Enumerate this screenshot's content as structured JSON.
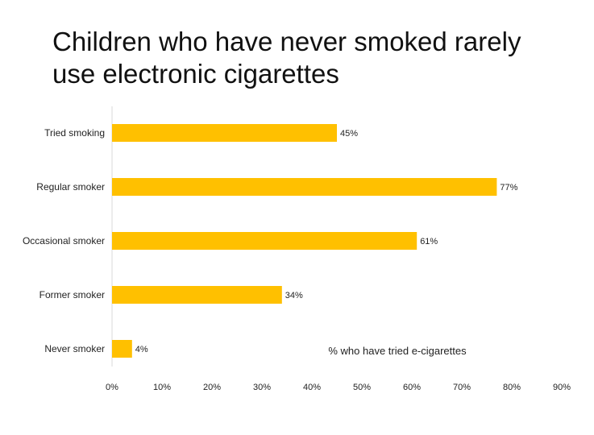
{
  "chart_data": {
    "type": "bar",
    "orientation": "horizontal",
    "title": "Children who have never smoked rarely use electronic cigarettes",
    "categories": [
      "Tried smoking",
      "Regular smoker",
      "Occasional smoker",
      "Former smoker",
      "Never smoker"
    ],
    "values": [
      45,
      77,
      61,
      34,
      4
    ],
    "value_labels": [
      "45%",
      "77%",
      "61%",
      "34%",
      "4%"
    ],
    "xlabel": "% who have tried e-cigarettes",
    "xlim": [
      0,
      90
    ],
    "xticks": [
      0,
      10,
      20,
      30,
      40,
      50,
      60,
      70,
      80,
      90
    ],
    "xtick_labels": [
      "0%",
      "10%",
      "20%",
      "30%",
      "40%",
      "50%",
      "60%",
      "70%",
      "80%",
      "90%"
    ],
    "bar_color": "#FFC000",
    "axis_color": "#D9D9D9",
    "grid": false
  }
}
